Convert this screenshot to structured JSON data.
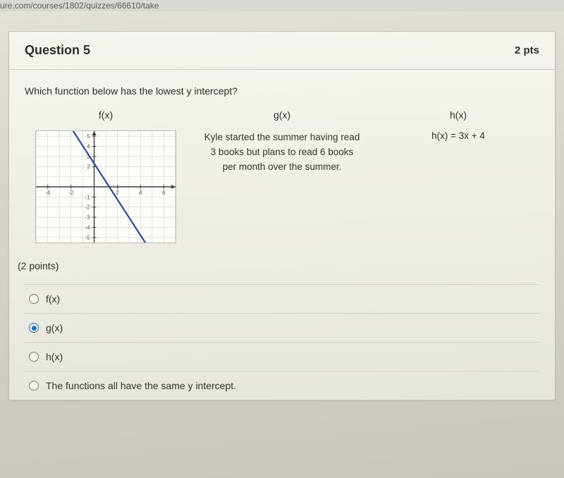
{
  "url_fragment": "ure.com/courses/1802/quizzes/66610/take",
  "header": {
    "title": "Question 5",
    "points": "2 pts"
  },
  "prompt": "Which function below has the lowest y intercept?",
  "columns": {
    "f": {
      "label": "f(x)",
      "graph": {
        "x_min": -5,
        "x_max": 7,
        "y_min": -5.5,
        "y_max": 5.5,
        "x_ticks_labeled": [
          -4,
          -2,
          2,
          4,
          6
        ],
        "y_ticks_labeled": [
          -5,
          -4,
          -3,
          -2,
          -1,
          2,
          3,
          4,
          5
        ],
        "grid_color": "#d1d0c8",
        "axis_color": "#3f3f3c",
        "line_color": "#2b4a9a",
        "line_width": 2.2,
        "line_points": [
          [
            -1.8,
            5.5
          ],
          [
            4.4,
            -5.5
          ]
        ],
        "tick_font_size": 8,
        "tick_color": "#5a5955",
        "background": "#fdfdf9",
        "border_color": "#bab9b2"
      }
    },
    "g": {
      "label": "g(x)",
      "description": "Kyle started the summer having read 3 books but plans to read 6 books per month over the summer."
    },
    "h": {
      "label": "h(x)",
      "equation": "h(x) = 3x + 4"
    }
  },
  "points_note": "(2 points)",
  "options": [
    {
      "id": "opt-fx",
      "label": "f(x)",
      "checked": false
    },
    {
      "id": "opt-gx",
      "label": "g(x)",
      "checked": true
    },
    {
      "id": "opt-hx",
      "label": "h(x)",
      "checked": false
    },
    {
      "id": "opt-same",
      "label": "The functions all have the same y intercept.",
      "checked": false
    }
  ]
}
